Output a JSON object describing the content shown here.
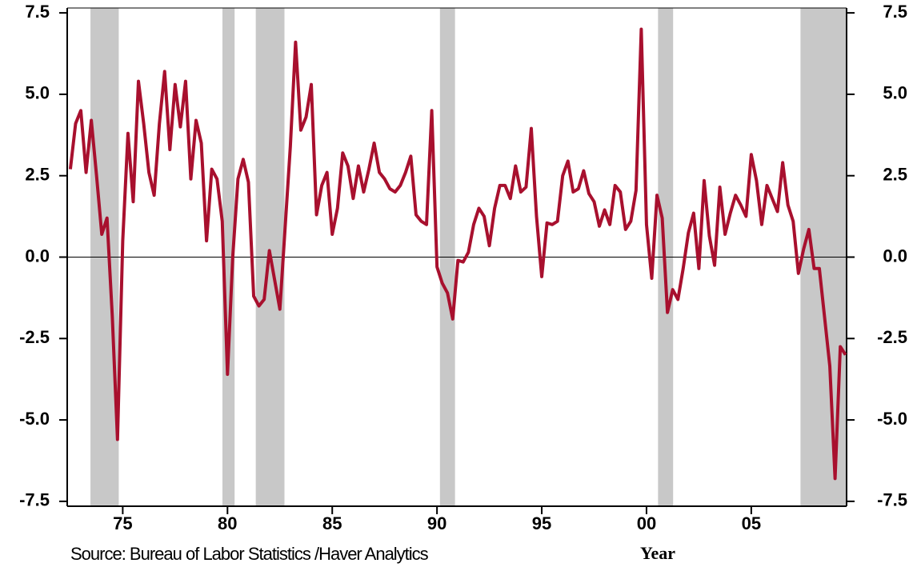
{
  "chart_data": {
    "type": "line",
    "x": [
      1972.5,
      1972.75,
      1973,
      1973.25,
      1973.5,
      1973.75,
      1974,
      1974.25,
      1974.5,
      1974.75,
      1975,
      1975.25,
      1975.5,
      1975.75,
      1976,
      1976.25,
      1976.5,
      1976.75,
      1977,
      1977.25,
      1977.5,
      1977.75,
      1978,
      1978.25,
      1978.5,
      1978.75,
      1979,
      1979.25,
      1979.5,
      1979.75,
      1980,
      1980.25,
      1980.5,
      1980.75,
      1981,
      1981.25,
      1981.5,
      1981.75,
      1982,
      1982.25,
      1982.5,
      1982.75,
      1983,
      1983.25,
      1983.5,
      1983.75,
      1984,
      1984.25,
      1984.5,
      1984.75,
      1985,
      1985.25,
      1985.5,
      1985.75,
      1986,
      1986.25,
      1986.5,
      1986.75,
      1987,
      1987.25,
      1987.5,
      1987.75,
      1988,
      1988.25,
      1988.5,
      1988.75,
      1989,
      1989.25,
      1989.5,
      1989.75,
      1990,
      1990.25,
      1990.5,
      1990.75,
      1991,
      1991.25,
      1991.5,
      1991.75,
      1992,
      1992.25,
      1992.5,
      1992.75,
      1993,
      1993.25,
      1993.5,
      1993.75,
      1994,
      1994.25,
      1994.5,
      1994.75,
      1995,
      1995.25,
      1995.5,
      1995.75,
      1996,
      1996.25,
      1996.5,
      1996.75,
      1997,
      1997.25,
      1997.5,
      1997.75,
      1998,
      1998.25,
      1998.5,
      1998.75,
      1999,
      1999.25,
      1999.5,
      1999.75,
      2000,
      2000.25,
      2000.5,
      2000.75,
      2001,
      2001.25,
      2001.5,
      2001.75,
      2002,
      2002.25,
      2002.5,
      2002.75,
      2003,
      2003.25,
      2003.5,
      2003.75,
      2004,
      2004.25,
      2004.5,
      2004.75,
      2005,
      2005.25,
      2005.5,
      2005.75,
      2006,
      2006.25,
      2006.5,
      2006.75,
      2007,
      2007.25,
      2007.5,
      2007.75,
      2008,
      2008.25,
      2008.5,
      2008.75,
      2009,
      2009.25,
      2009.5
    ],
    "values": [
      2.7,
      4.1,
      4.5,
      2.6,
      4.2,
      2.5,
      0.7,
      1.2,
      -1.8,
      -5.6,
      0.5,
      3.8,
      1.7,
      5.4,
      4.1,
      2.6,
      1.9,
      4.1,
      5.7,
      3.3,
      5.3,
      4.0,
      5.4,
      2.4,
      4.2,
      3.5,
      0.5,
      2.7,
      2.4,
      1.1,
      -3.6,
      0,
      2.4,
      3.0,
      2.3,
      -1.2,
      -1.5,
      -1.3,
      0.2,
      -0.7,
      -1.6,
      0.9,
      3.4,
      6.6,
      3.9,
      4.3,
      5.3,
      1.3,
      2.2,
      2.6,
      0.7,
      1.5,
      3.2,
      2.8,
      1.8,
      2.8,
      2.0,
      2.7,
      3.5,
      2.6,
      2.4,
      2.1,
      2.0,
      2.2,
      2.6,
      3.1,
      1.3,
      1.1,
      1.0,
      4.5,
      -0.3,
      -0.8,
      -1.1,
      -1.9,
      -0.1,
      -0.15,
      0.15,
      1.0,
      1.5,
      1.25,
      0.35,
      1.5,
      2.2,
      2.2,
      1.8,
      2.8,
      2.0,
      2.15,
      3.95,
      1.25,
      -0.6,
      1.05,
      1.0,
      1.1,
      2.5,
      2.95,
      2.0,
      2.1,
      2.65,
      1.95,
      1.7,
      0.95,
      1.45,
      1.0,
      2.2,
      2.0,
      0.85,
      1.1,
      2.05,
      7.0,
      1.0,
      -0.65,
      1.9,
      1.2,
      -1.7,
      -1.0,
      -1.3,
      -0.35,
      0.75,
      1.35,
      -0.35,
      2.35,
      0.65,
      -0.25,
      2.15,
      0.7,
      1.35,
      1.9,
      1.6,
      1.25,
      3.15,
      2.35,
      1.0,
      2.2,
      1.8,
      1.4,
      2.9,
      1.6,
      1.1,
      -0.5,
      0.25,
      0.85,
      -0.35,
      -0.35,
      -1.85,
      -3.35,
      -6.8,
      -2.75,
      -3.0
    ],
    "color": "#a8102e",
    "recession_bands": [
      [
        1973.46,
        1974.81
      ],
      [
        1979.76,
        1980.34
      ],
      [
        1981.35,
        1982.72
      ],
      [
        1990.14,
        1990.86
      ],
      [
        2000.55,
        2001.27
      ],
      [
        2007.35,
        2009.55
      ]
    ],
    "band_color": "#c8c8c8",
    "xlim": [
      1972.35,
      2009.55
    ],
    "xticks": [
      {
        "value": 1975,
        "label": "75"
      },
      {
        "value": 1980,
        "label": "80"
      },
      {
        "value": 1985,
        "label": "85"
      },
      {
        "value": 1990,
        "label": "90"
      },
      {
        "value": 1995,
        "label": "95"
      },
      {
        "value": 2000,
        "label": "00"
      },
      {
        "value": 2005,
        "label": "05"
      }
    ],
    "ylim": [
      -7.65,
      7.65
    ],
    "yticks": [
      7.5,
      {
        "value": 5,
        "label": "5.0"
      },
      2.5,
      {
        "value": 0,
        "label": "0.0"
      },
      -2.5,
      {
        "value": -5,
        "label": "-5.0"
      },
      -7.5
    ],
    "y2lim": [
      -7.65,
      7.65
    ],
    "y2ticks": [
      7.5,
      {
        "value": 5,
        "label": "5.0"
      },
      2.5,
      {
        "value": 0,
        "label": "0.0"
      },
      -2.5,
      {
        "value": -5,
        "label": "-5.0"
      },
      -7.5
    ],
    "xlabel": "Year",
    "source": "Source:  Bureau of Labor Statistics /Haver Analytics"
  }
}
